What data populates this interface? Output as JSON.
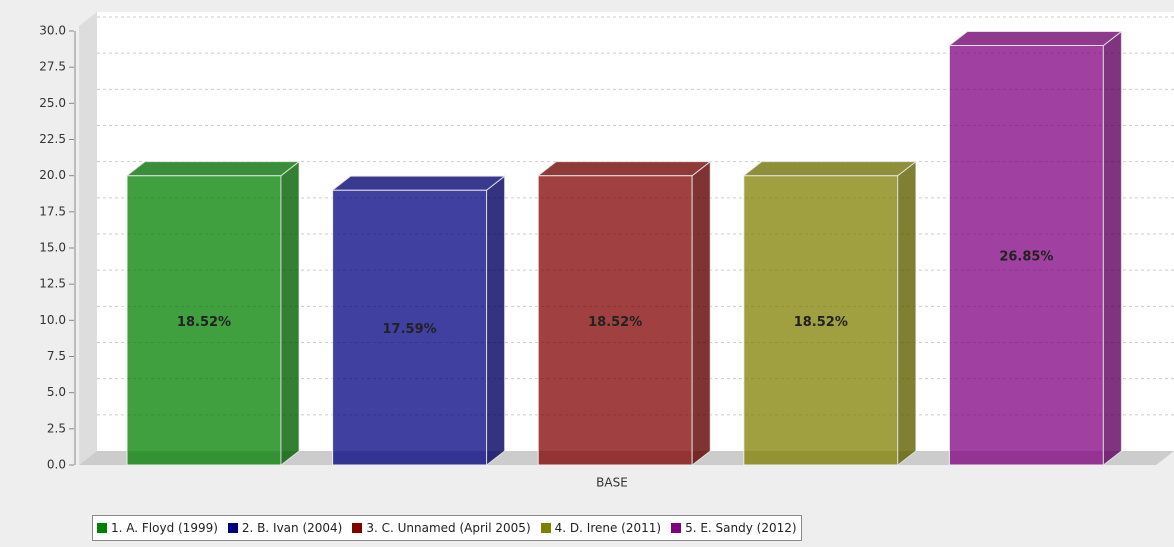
{
  "chart_data": {
    "type": "bar3d",
    "categories": [
      "BASE"
    ],
    "series": [
      {
        "name": "1. A. Floyd (1999)",
        "color": "#008000",
        "values": [
          20
        ],
        "labels": [
          "18.52%"
        ]
      },
      {
        "name": "2. B. Ivan (2004)",
        "color": "#000080",
        "values": [
          19
        ],
        "labels": [
          "17.59%"
        ]
      },
      {
        "name": "3. C. Unnamed (April 2005)",
        "color": "#800000",
        "values": [
          20
        ],
        "labels": [
          "18.52%"
        ]
      },
      {
        "name": "4. D. Irene (2011)",
        "color": "#808000",
        "values": [
          20
        ],
        "labels": [
          "18.52%"
        ]
      },
      {
        "name": "5. E. Sandy (2012)",
        "color": "#800080",
        "values": [
          29
        ],
        "labels": [
          "26.85%"
        ]
      }
    ],
    "ylim": [
      0,
      30
    ],
    "yticks": [
      {
        "value": 0,
        "label": "0.0"
      },
      2.5,
      {
        "value": 5,
        "label": "5.0"
      },
      7.5,
      {
        "value": 10,
        "label": "10.0"
      },
      12.5,
      {
        "value": 15,
        "label": "15.0"
      },
      17.5,
      {
        "value": 20,
        "label": "20.0"
      },
      22.5,
      {
        "value": 25,
        "label": "25.0"
      },
      27.5,
      {
        "value": 30,
        "label": "30.0"
      }
    ],
    "grid": true,
    "legend": "bottom"
  }
}
